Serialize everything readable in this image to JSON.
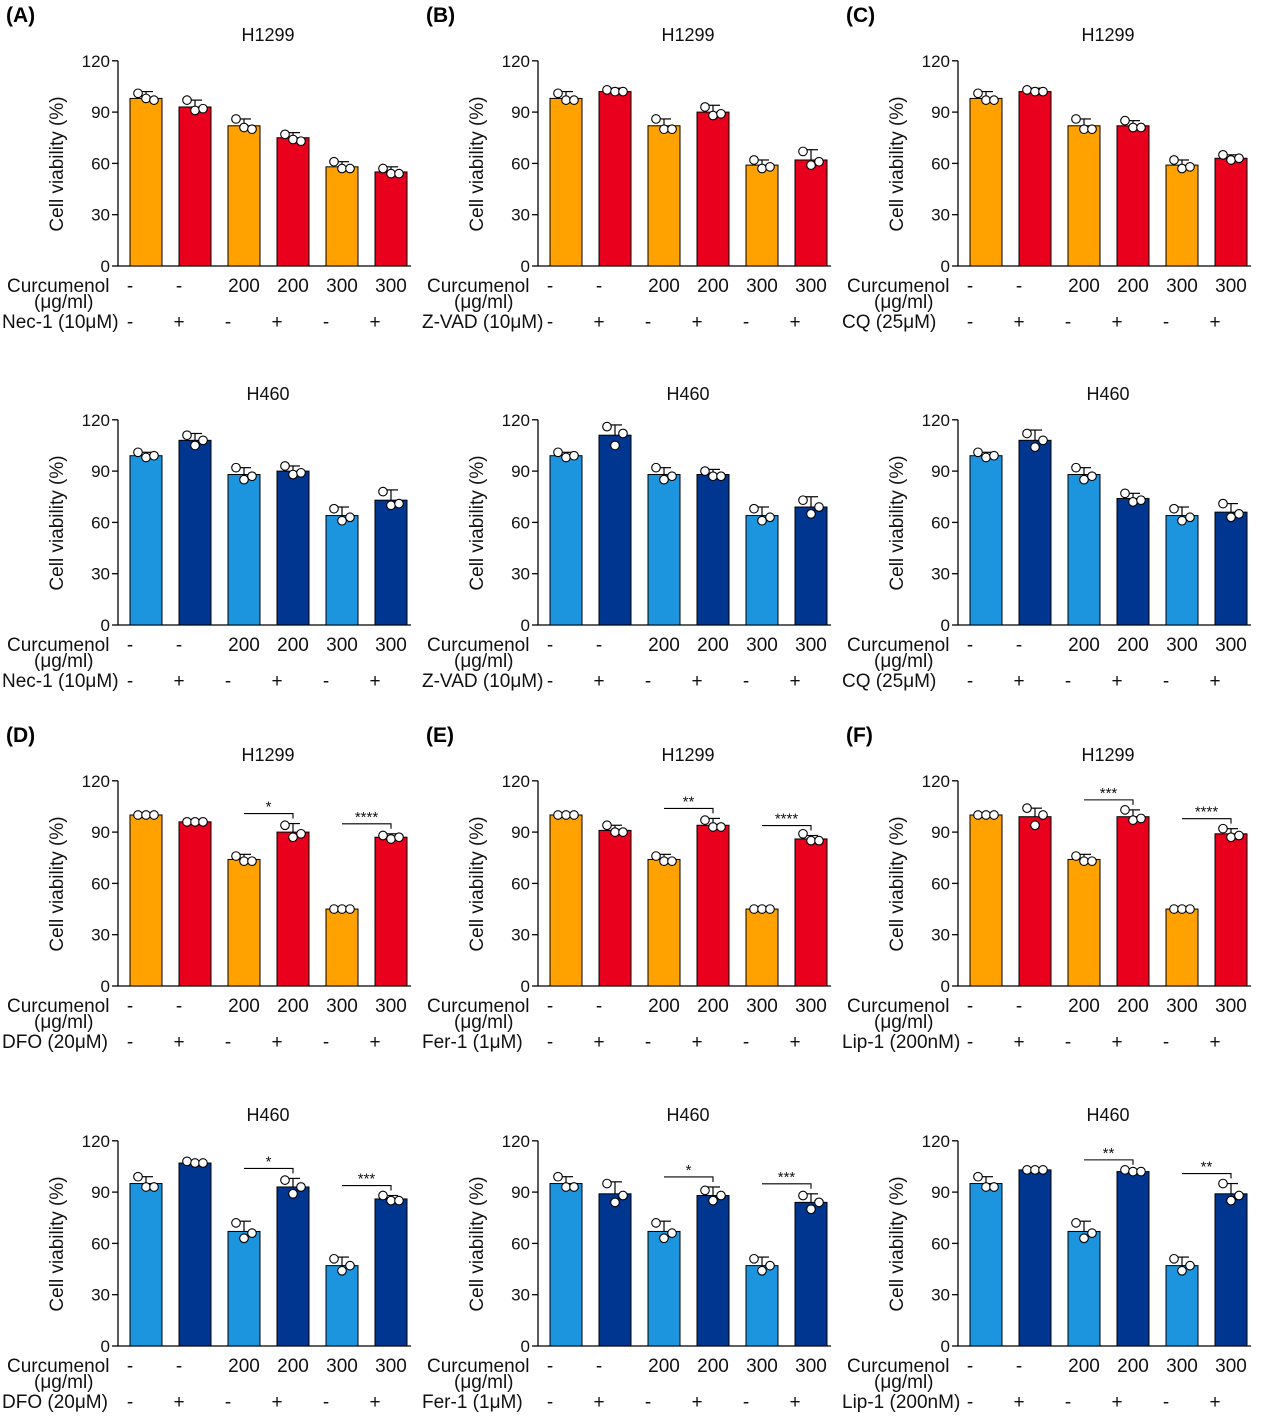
{
  "colors": {
    "orange": "#FFA200",
    "red": "#E8001C",
    "light_blue": "#1C95DE",
    "dark_blue": "#003590",
    "plus_red": "#E8001C",
    "text": "#111111"
  },
  "treatment_symbols": {
    "absent": "-",
    "present": "+"
  },
  "chart_data": [
    {
      "panel": "(A)",
      "type": "bar",
      "title": "H1299",
      "ylabel": "Cell viability (%)",
      "ylim": [
        0,
        120
      ],
      "yticks": [
        0,
        30,
        60,
        90,
        120
      ],
      "palette": "warm",
      "categories": [
        "-",
        "-",
        "200",
        "200",
        "300",
        "300"
      ],
      "row1_label": "Curcumenol",
      "row1_unit": "(μg/ml)",
      "row2_label": "Nec-1 (10μM)",
      "inhibitor": [
        false,
        true,
        false,
        true,
        false,
        true
      ],
      "values": [
        98,
        93,
        82,
        75,
        58,
        55
      ],
      "errors": [
        4,
        4,
        4,
        3,
        3,
        3
      ],
      "points": [
        [
          101,
          98,
          97
        ],
        [
          97,
          91,
          92
        ],
        [
          86,
          81,
          80
        ],
        [
          77,
          74,
          73
        ],
        [
          61,
          57,
          57
        ],
        [
          57,
          54,
          54
        ]
      ],
      "significance": []
    },
    {
      "panel": "(B)",
      "type": "bar",
      "title": "H1299",
      "ylabel": "Cell viability (%)",
      "ylim": [
        0,
        120
      ],
      "yticks": [
        0,
        30,
        60,
        90,
        120
      ],
      "palette": "warm",
      "categories": [
        "-",
        "-",
        "200",
        "200",
        "300",
        "300"
      ],
      "row1_label": "Curcumenol",
      "row1_unit": "(μg/ml)",
      "row2_label": "Z-VAD (10μM)",
      "inhibitor": [
        false,
        true,
        false,
        true,
        false,
        true
      ],
      "values": [
        98,
        102,
        82,
        90,
        59,
        62
      ],
      "errors": [
        4,
        2,
        4,
        4,
        3,
        6
      ],
      "points": [
        [
          101,
          97,
          97
        ],
        [
          103,
          102,
          102
        ],
        [
          86,
          80,
          80
        ],
        [
          93,
          88,
          89
        ],
        [
          62,
          57,
          58
        ],
        [
          67,
          59,
          61
        ]
      ],
      "significance": []
    },
    {
      "panel": "(C)",
      "type": "bar",
      "title": "H1299",
      "ylabel": "Cell viability (%)",
      "ylim": [
        0,
        120
      ],
      "yticks": [
        0,
        30,
        60,
        90,
        120
      ],
      "palette": "warm",
      "categories": [
        "-",
        "-",
        "200",
        "200",
        "300",
        "300"
      ],
      "row1_label": "Curcumenol",
      "row1_unit": "(μg/ml)",
      "row2_label": "CQ (25μM)",
      "inhibitor": [
        false,
        true,
        false,
        true,
        false,
        true
      ],
      "values": [
        98,
        102,
        82,
        82,
        59,
        63
      ],
      "errors": [
        4,
        2,
        4,
        3,
        3,
        2
      ],
      "points": [
        [
          101,
          97,
          97
        ],
        [
          103,
          102,
          102
        ],
        [
          86,
          80,
          80
        ],
        [
          85,
          81,
          81
        ],
        [
          62,
          57,
          58
        ],
        [
          65,
          62,
          63
        ]
      ],
      "significance": []
    },
    {
      "panel": "",
      "type": "bar",
      "title": "H460",
      "ylabel": "Cell viability (%)",
      "ylim": [
        0,
        120
      ],
      "yticks": [
        0,
        30,
        60,
        90,
        120
      ],
      "palette": "cool",
      "categories": [
        "-",
        "-",
        "200",
        "200",
        "300",
        "300"
      ],
      "row1_label": "Curcumenol",
      "row1_unit": "(μg/ml)",
      "row2_label": "Nec-1 (10μM)",
      "inhibitor": [
        false,
        true,
        false,
        true,
        false,
        true
      ],
      "values": [
        99,
        108,
        88,
        90,
        64,
        73
      ],
      "errors": [
        2,
        4,
        4,
        3,
        5,
        6
      ],
      "points": [
        [
          101,
          98,
          99
        ],
        [
          111,
          105,
          108
        ],
        [
          92,
          85,
          87
        ],
        [
          93,
          88,
          89
        ],
        [
          68,
          61,
          63
        ],
        [
          78,
          70,
          71
        ]
      ],
      "significance": []
    },
    {
      "panel": "",
      "type": "bar",
      "title": "H460",
      "ylabel": "Cell viability (%)",
      "ylim": [
        0,
        120
      ],
      "yticks": [
        0,
        30,
        60,
        90,
        120
      ],
      "palette": "cool",
      "categories": [
        "-",
        "-",
        "200",
        "200",
        "300",
        "300"
      ],
      "row1_label": "Curcumenol",
      "row1_unit": "(μg/ml)",
      "row2_label": "Z-VAD (10μM)",
      "inhibitor": [
        false,
        true,
        false,
        true,
        false,
        true
      ],
      "values": [
        99,
        111,
        88,
        88,
        64,
        69
      ],
      "errors": [
        2,
        6,
        4,
        3,
        5,
        6
      ],
      "points": [
        [
          101,
          98,
          99
        ],
        [
          116,
          105,
          112
        ],
        [
          92,
          85,
          87
        ],
        [
          90,
          87,
          87
        ],
        [
          68,
          61,
          63
        ],
        [
          73,
          65,
          69
        ]
      ],
      "significance": []
    },
    {
      "panel": "",
      "type": "bar",
      "title": "H460",
      "ylabel": "Cell viability (%)",
      "ylim": [
        0,
        120
      ],
      "yticks": [
        0,
        30,
        60,
        90,
        120
      ],
      "palette": "cool",
      "categories": [
        "-",
        "-",
        "200",
        "200",
        "300",
        "300"
      ],
      "row1_label": "Curcumenol",
      "row1_unit": "(μg/ml)",
      "row2_label": "CQ (25μM)",
      "inhibitor": [
        false,
        true,
        false,
        true,
        false,
        true
      ],
      "values": [
        99,
        108,
        88,
        74,
        64,
        66
      ],
      "errors": [
        2,
        6,
        4,
        3,
        5,
        5
      ],
      "points": [
        [
          101,
          98,
          99
        ],
        [
          112,
          104,
          108
        ],
        [
          92,
          85,
          87
        ],
        [
          77,
          72,
          73
        ],
        [
          68,
          61,
          63
        ],
        [
          71,
          63,
          65
        ]
      ],
      "significance": []
    },
    {
      "panel": "(D)",
      "type": "bar",
      "title": "H1299",
      "ylabel": "Cell viability (%)",
      "ylim": [
        0,
        120
      ],
      "yticks": [
        0,
        30,
        60,
        90,
        120
      ],
      "palette": "warm",
      "categories": [
        "-",
        "-",
        "200",
        "200",
        "300",
        "300"
      ],
      "row1_label": "Curcumenol",
      "row1_unit": "(μg/ml)",
      "row2_label": "DFO (20μM)",
      "inhibitor": [
        false,
        true,
        false,
        true,
        false,
        true
      ],
      "values": [
        100,
        96,
        74,
        90,
        45,
        87
      ],
      "errors": [
        1,
        1,
        3,
        5,
        1,
        2
      ],
      "points": [
        [
          100,
          100,
          100
        ],
        [
          96,
          96,
          96
        ],
        [
          76,
          73,
          73
        ],
        [
          94,
          87,
          89
        ],
        [
          45,
          45,
          45
        ],
        [
          88,
          86,
          87
        ]
      ],
      "significance": [
        {
          "a": 2,
          "b": 3,
          "label": "*"
        },
        {
          "a": 4,
          "b": 5,
          "label": "****"
        }
      ]
    },
    {
      "panel": "(E)",
      "type": "bar",
      "title": "H1299",
      "ylabel": "Cell viability (%)",
      "ylim": [
        0,
        120
      ],
      "yticks": [
        0,
        30,
        60,
        90,
        120
      ],
      "palette": "warm",
      "categories": [
        "-",
        "-",
        "200",
        "200",
        "300",
        "300"
      ],
      "row1_label": "Curcumenol",
      "row1_unit": "(μg/ml)",
      "row2_label": "Fer-1 (1μM)",
      "inhibitor": [
        false,
        true,
        false,
        true,
        false,
        true
      ],
      "values": [
        100,
        91,
        74,
        94,
        45,
        86
      ],
      "errors": [
        1,
        3,
        3,
        4,
        1,
        2
      ],
      "points": [
        [
          100,
          100,
          100
        ],
        [
          94,
          90,
          90
        ],
        [
          76,
          73,
          73
        ],
        [
          97,
          93,
          93
        ],
        [
          45,
          45,
          45
        ],
        [
          89,
          85,
          85
        ]
      ],
      "significance": [
        {
          "a": 2,
          "b": 3,
          "label": "**"
        },
        {
          "a": 4,
          "b": 5,
          "label": "****"
        }
      ]
    },
    {
      "panel": "(F)",
      "type": "bar",
      "title": "H1299",
      "ylabel": "Cell viability (%)",
      "ylim": [
        0,
        120
      ],
      "yticks": [
        0,
        30,
        60,
        90,
        120
      ],
      "palette": "warm",
      "categories": [
        "-",
        "-",
        "200",
        "200",
        "300",
        "300"
      ],
      "row1_label": "Curcumenol",
      "row1_unit": "(μg/ml)",
      "row2_label": "Lip-1 (200nM)",
      "inhibitor": [
        false,
        true,
        false,
        true,
        false,
        true
      ],
      "values": [
        100,
        99,
        74,
        99,
        45,
        89
      ],
      "errors": [
        1,
        5,
        3,
        4,
        1,
        3
      ],
      "points": [
        [
          100,
          100,
          100
        ],
        [
          104,
          94,
          100
        ],
        [
          76,
          73,
          73
        ],
        [
          103,
          97,
          98
        ],
        [
          45,
          45,
          45
        ],
        [
          92,
          87,
          88
        ]
      ],
      "significance": [
        {
          "a": 2,
          "b": 3,
          "label": "***"
        },
        {
          "a": 4,
          "b": 5,
          "label": "****"
        }
      ]
    },
    {
      "panel": "",
      "type": "bar",
      "title": "H460",
      "ylabel": "Cell viability (%)",
      "ylim": [
        0,
        120
      ],
      "yticks": [
        0,
        30,
        60,
        90,
        120
      ],
      "palette": "cool",
      "categories": [
        "-",
        "-",
        "200",
        "200",
        "300",
        "300"
      ],
      "row1_label": "Curcumenol",
      "row1_unit": "(μg/ml)",
      "row2_label": "DFO (20μM)",
      "inhibitor": [
        false,
        true,
        false,
        true,
        false,
        true
      ],
      "values": [
        95,
        107,
        67,
        93,
        47,
        86
      ],
      "errors": [
        4,
        1,
        6,
        5,
        5,
        2
      ],
      "points": [
        [
          99,
          93,
          93
        ],
        [
          108,
          107,
          107
        ],
        [
          72,
          63,
          66
        ],
        [
          97,
          89,
          93
        ],
        [
          51,
          44,
          47
        ],
        [
          88,
          85,
          85
        ]
      ],
      "significance": [
        {
          "a": 2,
          "b": 3,
          "label": "*"
        },
        {
          "a": 4,
          "b": 5,
          "label": "***"
        }
      ]
    },
    {
      "panel": "",
      "type": "bar",
      "title": "H460",
      "ylabel": "Cell viability (%)",
      "ylim": [
        0,
        120
      ],
      "yticks": [
        0,
        30,
        60,
        90,
        120
      ],
      "palette": "cool",
      "categories": [
        "-",
        "-",
        "200",
        "200",
        "300",
        "300"
      ],
      "row1_label": "Curcumenol",
      "row1_unit": "(μg/ml)",
      "row2_label": "Fer-1 (1μM)",
      "inhibitor": [
        false,
        true,
        false,
        true,
        false,
        true
      ],
      "values": [
        95,
        89,
        67,
        88,
        47,
        84
      ],
      "errors": [
        4,
        7,
        6,
        5,
        5,
        5
      ],
      "points": [
        [
          99,
          93,
          93
        ],
        [
          95,
          84,
          88
        ],
        [
          72,
          63,
          66
        ],
        [
          91,
          85,
          88
        ],
        [
          51,
          44,
          47
        ],
        [
          88,
          80,
          84
        ]
      ],
      "significance": [
        {
          "a": 2,
          "b": 3,
          "label": "*"
        },
        {
          "a": 4,
          "b": 5,
          "label": "***"
        }
      ]
    },
    {
      "panel": "",
      "type": "bar",
      "title": "H460",
      "ylabel": "Cell viability (%)",
      "ylim": [
        0,
        120
      ],
      "yticks": [
        0,
        30,
        60,
        90,
        120
      ],
      "palette": "cool",
      "categories": [
        "-",
        "-",
        "200",
        "200",
        "300",
        "300"
      ],
      "row1_label": "Curcumenol",
      "row1_unit": "(μg/ml)",
      "row2_label": "Lip-1 (200nM)",
      "inhibitor": [
        false,
        true,
        false,
        true,
        false,
        true
      ],
      "values": [
        95,
        103,
        67,
        102,
        47,
        89
      ],
      "errors": [
        4,
        1,
        6,
        1,
        5,
        6
      ],
      "points": [
        [
          99,
          93,
          93
        ],
        [
          103,
          103,
          103
        ],
        [
          72,
          63,
          66
        ],
        [
          103,
          102,
          102
        ],
        [
          51,
          44,
          47
        ],
        [
          95,
          85,
          88
        ]
      ],
      "significance": [
        {
          "a": 2,
          "b": 3,
          "label": "**"
        },
        {
          "a": 4,
          "b": 5,
          "label": "**"
        }
      ]
    }
  ]
}
